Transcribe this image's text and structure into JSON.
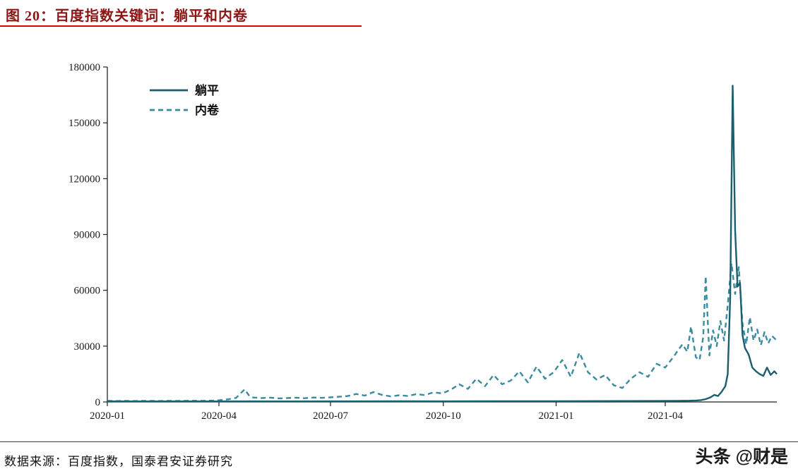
{
  "header": {
    "title": "图 20：百度指数关键词：躺平和内卷"
  },
  "footer": {
    "source": "数据来源：百度指数，国泰君安证券研究",
    "watermark": "头条 @财是"
  },
  "colors": {
    "title": "#8c1616",
    "rule": "#e30000",
    "axis": "#222222",
    "tangping": "#1b5e6e",
    "neijuan": "#3b8ba0"
  },
  "chart_data": {
    "type": "line",
    "title": "图 20：百度指数关键词：躺平和内卷",
    "xlabel": "",
    "ylabel": "",
    "grid": false,
    "legend_position": "top-left",
    "ylim": [
      0,
      180000
    ],
    "y_ticks": [
      0,
      30000,
      60000,
      90000,
      120000,
      150000,
      180000
    ],
    "x_ticks": [
      "2020-01",
      "2020-04",
      "2020-07",
      "2020-10",
      "2021-01",
      "2021-04"
    ],
    "x_tick_days": [
      0,
      91,
      182,
      274,
      366,
      455
    ],
    "x_range_days": [
      0,
      546
    ],
    "series": [
      {
        "id": "tangping",
        "name": "躺平",
        "style": "solid",
        "color": "#1b5e6e",
        "width": 2.4,
        "dash": "",
        "points": [
          [
            0,
            350
          ],
          [
            30,
            300
          ],
          [
            60,
            330
          ],
          [
            90,
            300
          ],
          [
            120,
            350
          ],
          [
            150,
            320
          ],
          [
            180,
            350
          ],
          [
            210,
            330
          ],
          [
            240,
            360
          ],
          [
            270,
            340
          ],
          [
            300,
            380
          ],
          [
            330,
            400
          ],
          [
            360,
            420
          ],
          [
            390,
            450
          ],
          [
            420,
            480
          ],
          [
            450,
            520
          ],
          [
            465,
            600
          ],
          [
            475,
            700
          ],
          [
            480,
            800
          ],
          [
            484,
            1000
          ],
          [
            488,
            1500
          ],
          [
            492,
            2500
          ],
          [
            495,
            3800
          ],
          [
            498,
            3200
          ],
          [
            501,
            5500
          ],
          [
            504,
            8500
          ],
          [
            506,
            15000
          ],
          [
            508,
            56000
          ],
          [
            510,
            170000
          ],
          [
            512,
            92000
          ],
          [
            514,
            62000
          ],
          [
            516,
            64000
          ],
          [
            518,
            36000
          ],
          [
            520,
            29000
          ],
          [
            523,
            25500
          ],
          [
            526,
            18500
          ],
          [
            529,
            16500
          ],
          [
            532,
            15000
          ],
          [
            535,
            14000
          ],
          [
            538,
            18500
          ],
          [
            541,
            14500
          ],
          [
            544,
            16500
          ],
          [
            546,
            15000
          ]
        ]
      },
      {
        "id": "neijuan",
        "name": "内卷",
        "style": "dashed",
        "color": "#3b8ba0",
        "width": 2.4,
        "dash": "7 5",
        "points": [
          [
            0,
            600
          ],
          [
            7,
            500
          ],
          [
            14,
            550
          ],
          [
            21,
            500
          ],
          [
            28,
            620
          ],
          [
            35,
            560
          ],
          [
            42,
            500
          ],
          [
            49,
            600
          ],
          [
            56,
            540
          ],
          [
            63,
            600
          ],
          [
            70,
            650
          ],
          [
            77,
            600
          ],
          [
            84,
            700
          ],
          [
            91,
            900
          ],
          [
            98,
            1400
          ],
          [
            105,
            2200
          ],
          [
            112,
            6800
          ],
          [
            116,
            3000
          ],
          [
            119,
            2400
          ],
          [
            126,
            2100
          ],
          [
            133,
            2300
          ],
          [
            140,
            1900
          ],
          [
            147,
            2100
          ],
          [
            154,
            2300
          ],
          [
            161,
            2000
          ],
          [
            168,
            2400
          ],
          [
            175,
            2200
          ],
          [
            182,
            2500
          ],
          [
            189,
            2800
          ],
          [
            196,
            3200
          ],
          [
            203,
            4300
          ],
          [
            210,
            3400
          ],
          [
            217,
            5300
          ],
          [
            224,
            3800
          ],
          [
            231,
            3000
          ],
          [
            238,
            3600
          ],
          [
            245,
            3200
          ],
          [
            252,
            4200
          ],
          [
            259,
            3700
          ],
          [
            266,
            5200
          ],
          [
            273,
            4600
          ],
          [
            280,
            6500
          ],
          [
            287,
            9500
          ],
          [
            294,
            7000
          ],
          [
            301,
            12500
          ],
          [
            308,
            8500
          ],
          [
            315,
            14500
          ],
          [
            322,
            9500
          ],
          [
            329,
            11500
          ],
          [
            336,
            16500
          ],
          [
            343,
            10500
          ],
          [
            350,
            19000
          ],
          [
            357,
            12500
          ],
          [
            364,
            16000
          ],
          [
            371,
            22500
          ],
          [
            378,
            13500
          ],
          [
            385,
            26500
          ],
          [
            392,
            16000
          ],
          [
            399,
            12000
          ],
          [
            406,
            14500
          ],
          [
            413,
            9000
          ],
          [
            420,
            7500
          ],
          [
            427,
            12500
          ],
          [
            434,
            16000
          ],
          [
            441,
            13500
          ],
          [
            448,
            20500
          ],
          [
            455,
            18500
          ],
          [
            462,
            24500
          ],
          [
            469,
            31000
          ],
          [
            473,
            27000
          ],
          [
            476,
            40500
          ],
          [
            480,
            24000
          ],
          [
            483,
            22500
          ],
          [
            486,
            35000
          ],
          [
            488,
            67500
          ],
          [
            491,
            25000
          ],
          [
            494,
            38500
          ],
          [
            497,
            30000
          ],
          [
            500,
            43500
          ],
          [
            503,
            33000
          ],
          [
            506,
            52000
          ],
          [
            509,
            74500
          ],
          [
            512,
            58000
          ],
          [
            515,
            72500
          ],
          [
            518,
            42000
          ],
          [
            521,
            31000
          ],
          [
            524,
            45500
          ],
          [
            527,
            33000
          ],
          [
            530,
            39000
          ],
          [
            533,
            30500
          ],
          [
            536,
            37500
          ],
          [
            539,
            31500
          ],
          [
            542,
            35500
          ],
          [
            546,
            33000
          ]
        ]
      }
    ]
  }
}
